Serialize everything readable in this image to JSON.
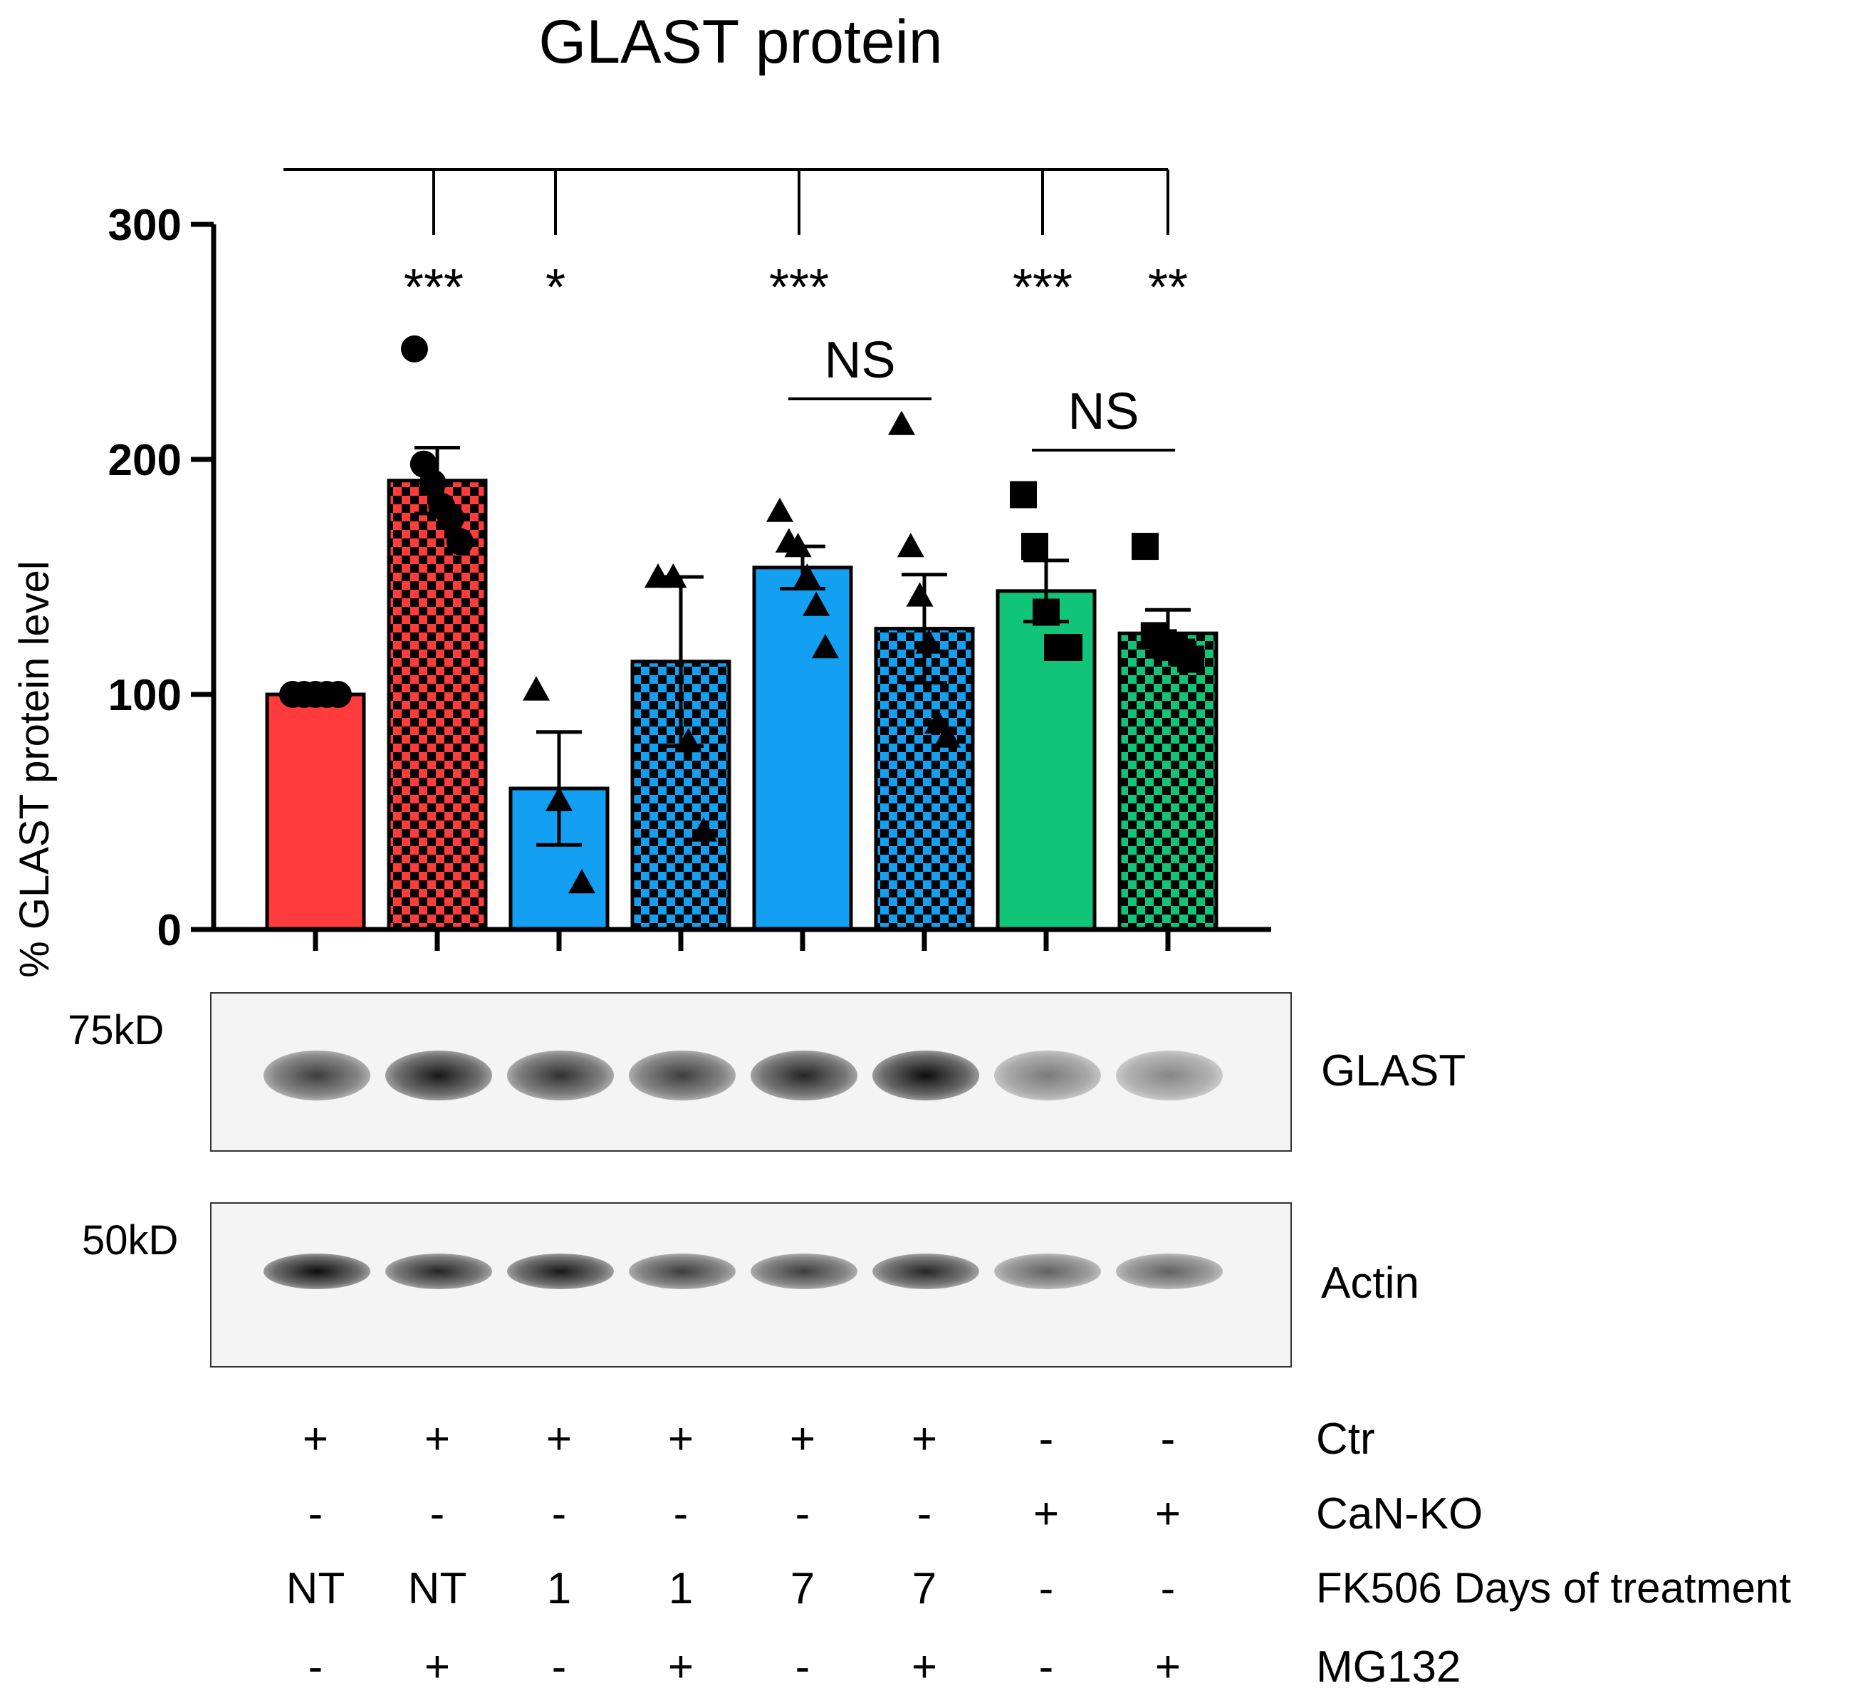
{
  "chart_data": {
    "type": "bar",
    "title": "GLAST protein",
    "ylabel": "% GLAST protein level",
    "ylim": [
      0,
      300
    ],
    "yticks": [
      0,
      100,
      200,
      300
    ],
    "categories": [
      "NT",
      "NT + MG132",
      "FK506 1 d",
      "FK506 1 d + MG132",
      "FK506 7 d",
      "FK506 7 d + MG132",
      "CaN-KO",
      "CaN-KO + MG132"
    ],
    "values": [
      100,
      191,
      60,
      114,
      154,
      128,
      144,
      126
    ],
    "sem": [
      0,
      14,
      24,
      36,
      9,
      23,
      13,
      10
    ],
    "bar_colors": [
      "#ff3b3b",
      "#ff3b3b",
      "#139ff2",
      "#139ff2",
      "#139ff2",
      "#139ff2",
      "#10c578",
      "#10c578"
    ],
    "bar_pattern": [
      "solid",
      "checker",
      "solid",
      "checker",
      "solid",
      "checker",
      "solid",
      "checker"
    ],
    "point_markers": [
      "circle",
      "circle",
      "triangle",
      "triangle",
      "triangle",
      "triangle",
      "square",
      "square"
    ],
    "points": [
      [
        100,
        100,
        100,
        100,
        100
      ],
      [
        247,
        198,
        190,
        180,
        175,
        165
      ],
      [
        102,
        55,
        20
      ],
      [
        150,
        150,
        80,
        42
      ],
      [
        178,
        165,
        163,
        150,
        138,
        120
      ],
      [
        215,
        163,
        142,
        122,
        88,
        82
      ],
      [
        185,
        163,
        135,
        120,
        120
      ],
      [
        163,
        125,
        122,
        120,
        118,
        115
      ]
    ],
    "comparisons": [
      {
        "from": 0,
        "to": 1,
        "label": "***"
      },
      {
        "from": 0,
        "to": 2,
        "label": "*"
      },
      {
        "from": 0,
        "to": 4,
        "label": "***"
      },
      {
        "from": 0,
        "to": 6,
        "label": "***"
      },
      {
        "from": 0,
        "to": 7,
        "label": "**"
      },
      {
        "from": 4,
        "to": 5,
        "label": "NS"
      },
      {
        "from": 6,
        "to": 7,
        "label": "NS"
      }
    ],
    "grid": false
  },
  "blots": [
    {
      "name": "GLAST",
      "mw": "75kD",
      "intensity": [
        0.75,
        0.9,
        0.8,
        0.75,
        0.85,
        0.95,
        0.5,
        0.45
      ]
    },
    {
      "name": "Actin",
      "mw": "50kD",
      "intensity": [
        0.95,
        0.85,
        0.9,
        0.75,
        0.75,
        0.85,
        0.6,
        0.6
      ]
    }
  ],
  "conditions": [
    {
      "label": "Ctr",
      "values": [
        "+",
        "+",
        "+",
        "+",
        "+",
        "+",
        "-",
        "-"
      ]
    },
    {
      "label": "CaN-KO",
      "values": [
        "-",
        "-",
        "-",
        "-",
        "-",
        "-",
        "+",
        "+"
      ]
    },
    {
      "label": "FK506 Days of treatment",
      "values": [
        "NT",
        "NT",
        "1",
        "1",
        "7",
        "7",
        "-",
        "-"
      ]
    },
    {
      "label": "MG132",
      "values": [
        "-",
        "+",
        "-",
        "+",
        "-",
        "+",
        "-",
        "+"
      ]
    }
  ]
}
